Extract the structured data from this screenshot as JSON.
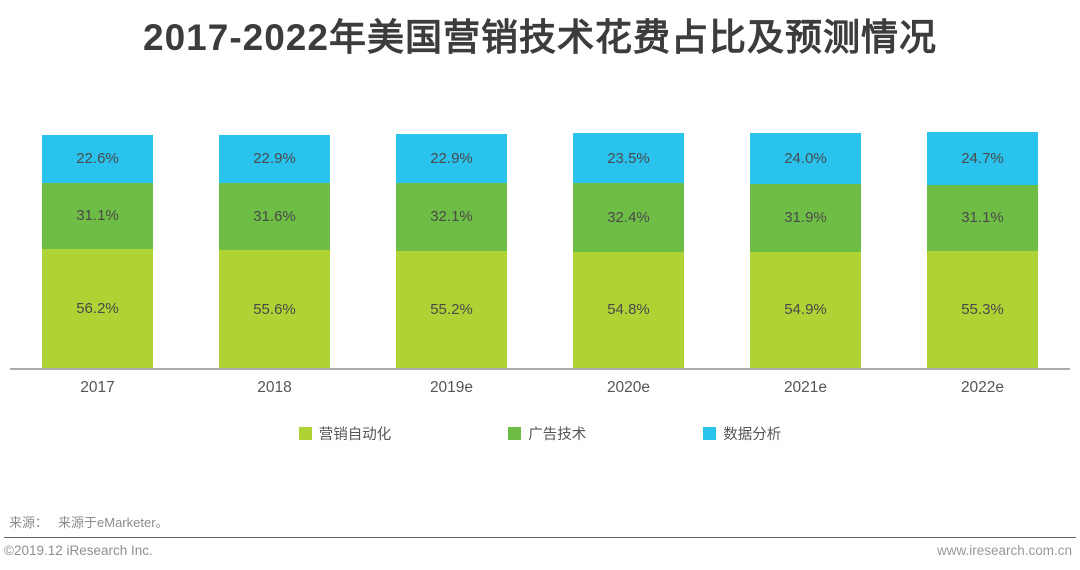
{
  "chart_data": {
    "type": "bar",
    "stacked": true,
    "title": "2017-2022年美国营销技术花费占比及预测情况",
    "categories": [
      "2017",
      "2018",
      "2019e",
      "2020e",
      "2021e",
      "2022e"
    ],
    "series": [
      {
        "name": "营销自动化",
        "color": "#AFD235",
        "values": [
          56.2,
          55.6,
          55.2,
          54.8,
          54.9,
          55.3
        ]
      },
      {
        "name": "广告技术",
        "color": "#6EBE46",
        "values": [
          31.1,
          31.6,
          32.1,
          32.4,
          31.9,
          31.1
        ]
      },
      {
        "name": "数据分析",
        "color": "#29C3EE",
        "values": [
          22.6,
          22.9,
          22.9,
          23.5,
          24.0,
          24.7
        ]
      }
    ],
    "value_suffix": "%",
    "value_decimals": 1,
    "xlabel": "",
    "ylabel": "",
    "grid": false,
    "y_axis_visible": false,
    "legend_position": "bottom",
    "axis_line_color": "#ABABAB",
    "label_color": "#4A4A4A"
  },
  "footer": {
    "source_label": "来源：",
    "source_text": "来源于eMarketer。",
    "copyright": "©2019.12 iResearch Inc.",
    "website": "www.iresearch.com.cn"
  }
}
